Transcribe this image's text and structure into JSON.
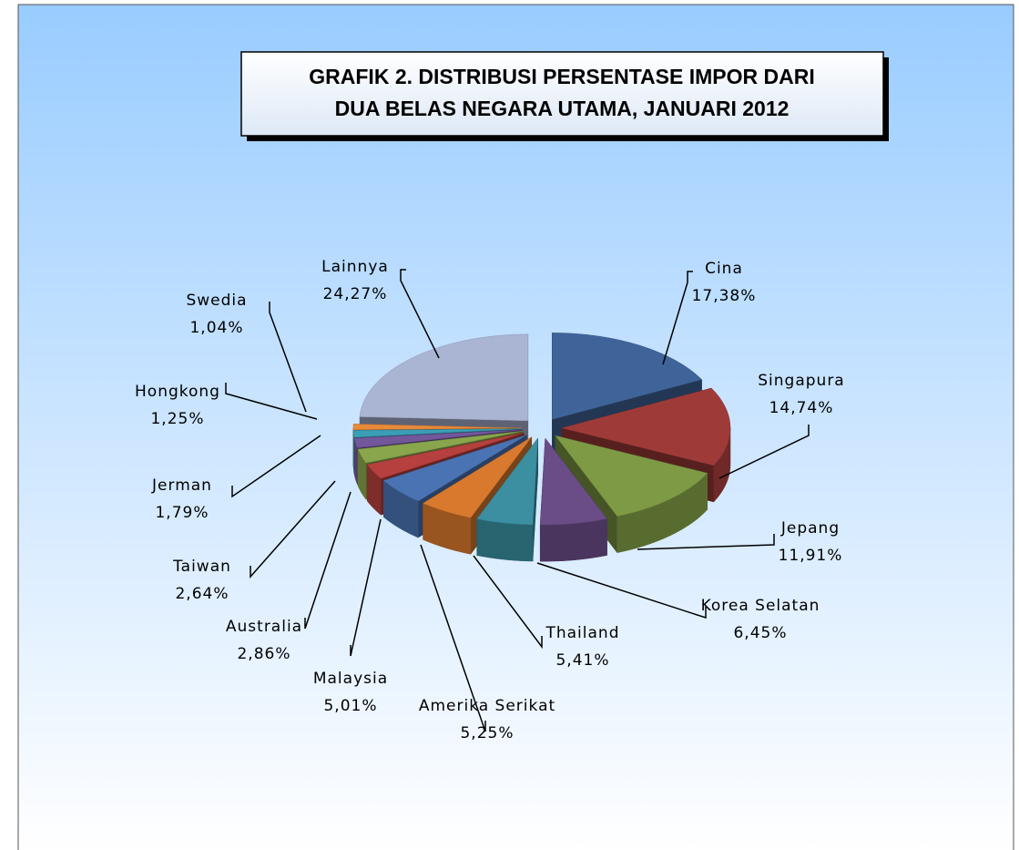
{
  "chart_data": {
    "type": "pie3d",
    "title": [
      "GRAFIK 2. DISTRIBUSI  PERSENTASE IMPOR DARI",
      "DUA BELAS NEGARA UTAMA, JANUARI 2012"
    ],
    "categories": [
      "Cina",
      "Singapura",
      "Jepang",
      "Korea Selatan",
      "Thailand",
      "Amerika Serikat",
      "Malaysia",
      "Australia",
      "Taiwan",
      "Jerman",
      "Hongkong",
      "Swedia",
      "Lainnya"
    ],
    "values": [
      17.38,
      14.74,
      11.91,
      6.45,
      5.41,
      5.25,
      5.01,
      2.86,
      2.64,
      1.79,
      1.25,
      1.04,
      24.27
    ],
    "value_labels": [
      "17,38%",
      "14,74%",
      "11,91%",
      "6,45%",
      "5,41%",
      "5,25%",
      "5,01%",
      "2,86%",
      "2,64%",
      "1,79%",
      "1,25%",
      "1,04%",
      "24,27%"
    ],
    "colors": [
      "#3f6499",
      "#9e3b39",
      "#7f9a45",
      "#6a4c87",
      "#3b8fa1",
      "#d9792e",
      "#4a73b3",
      "#b5403e",
      "#89a64c",
      "#72579b",
      "#3a9fb6",
      "#e88a3a",
      "#aab4d3"
    ]
  }
}
